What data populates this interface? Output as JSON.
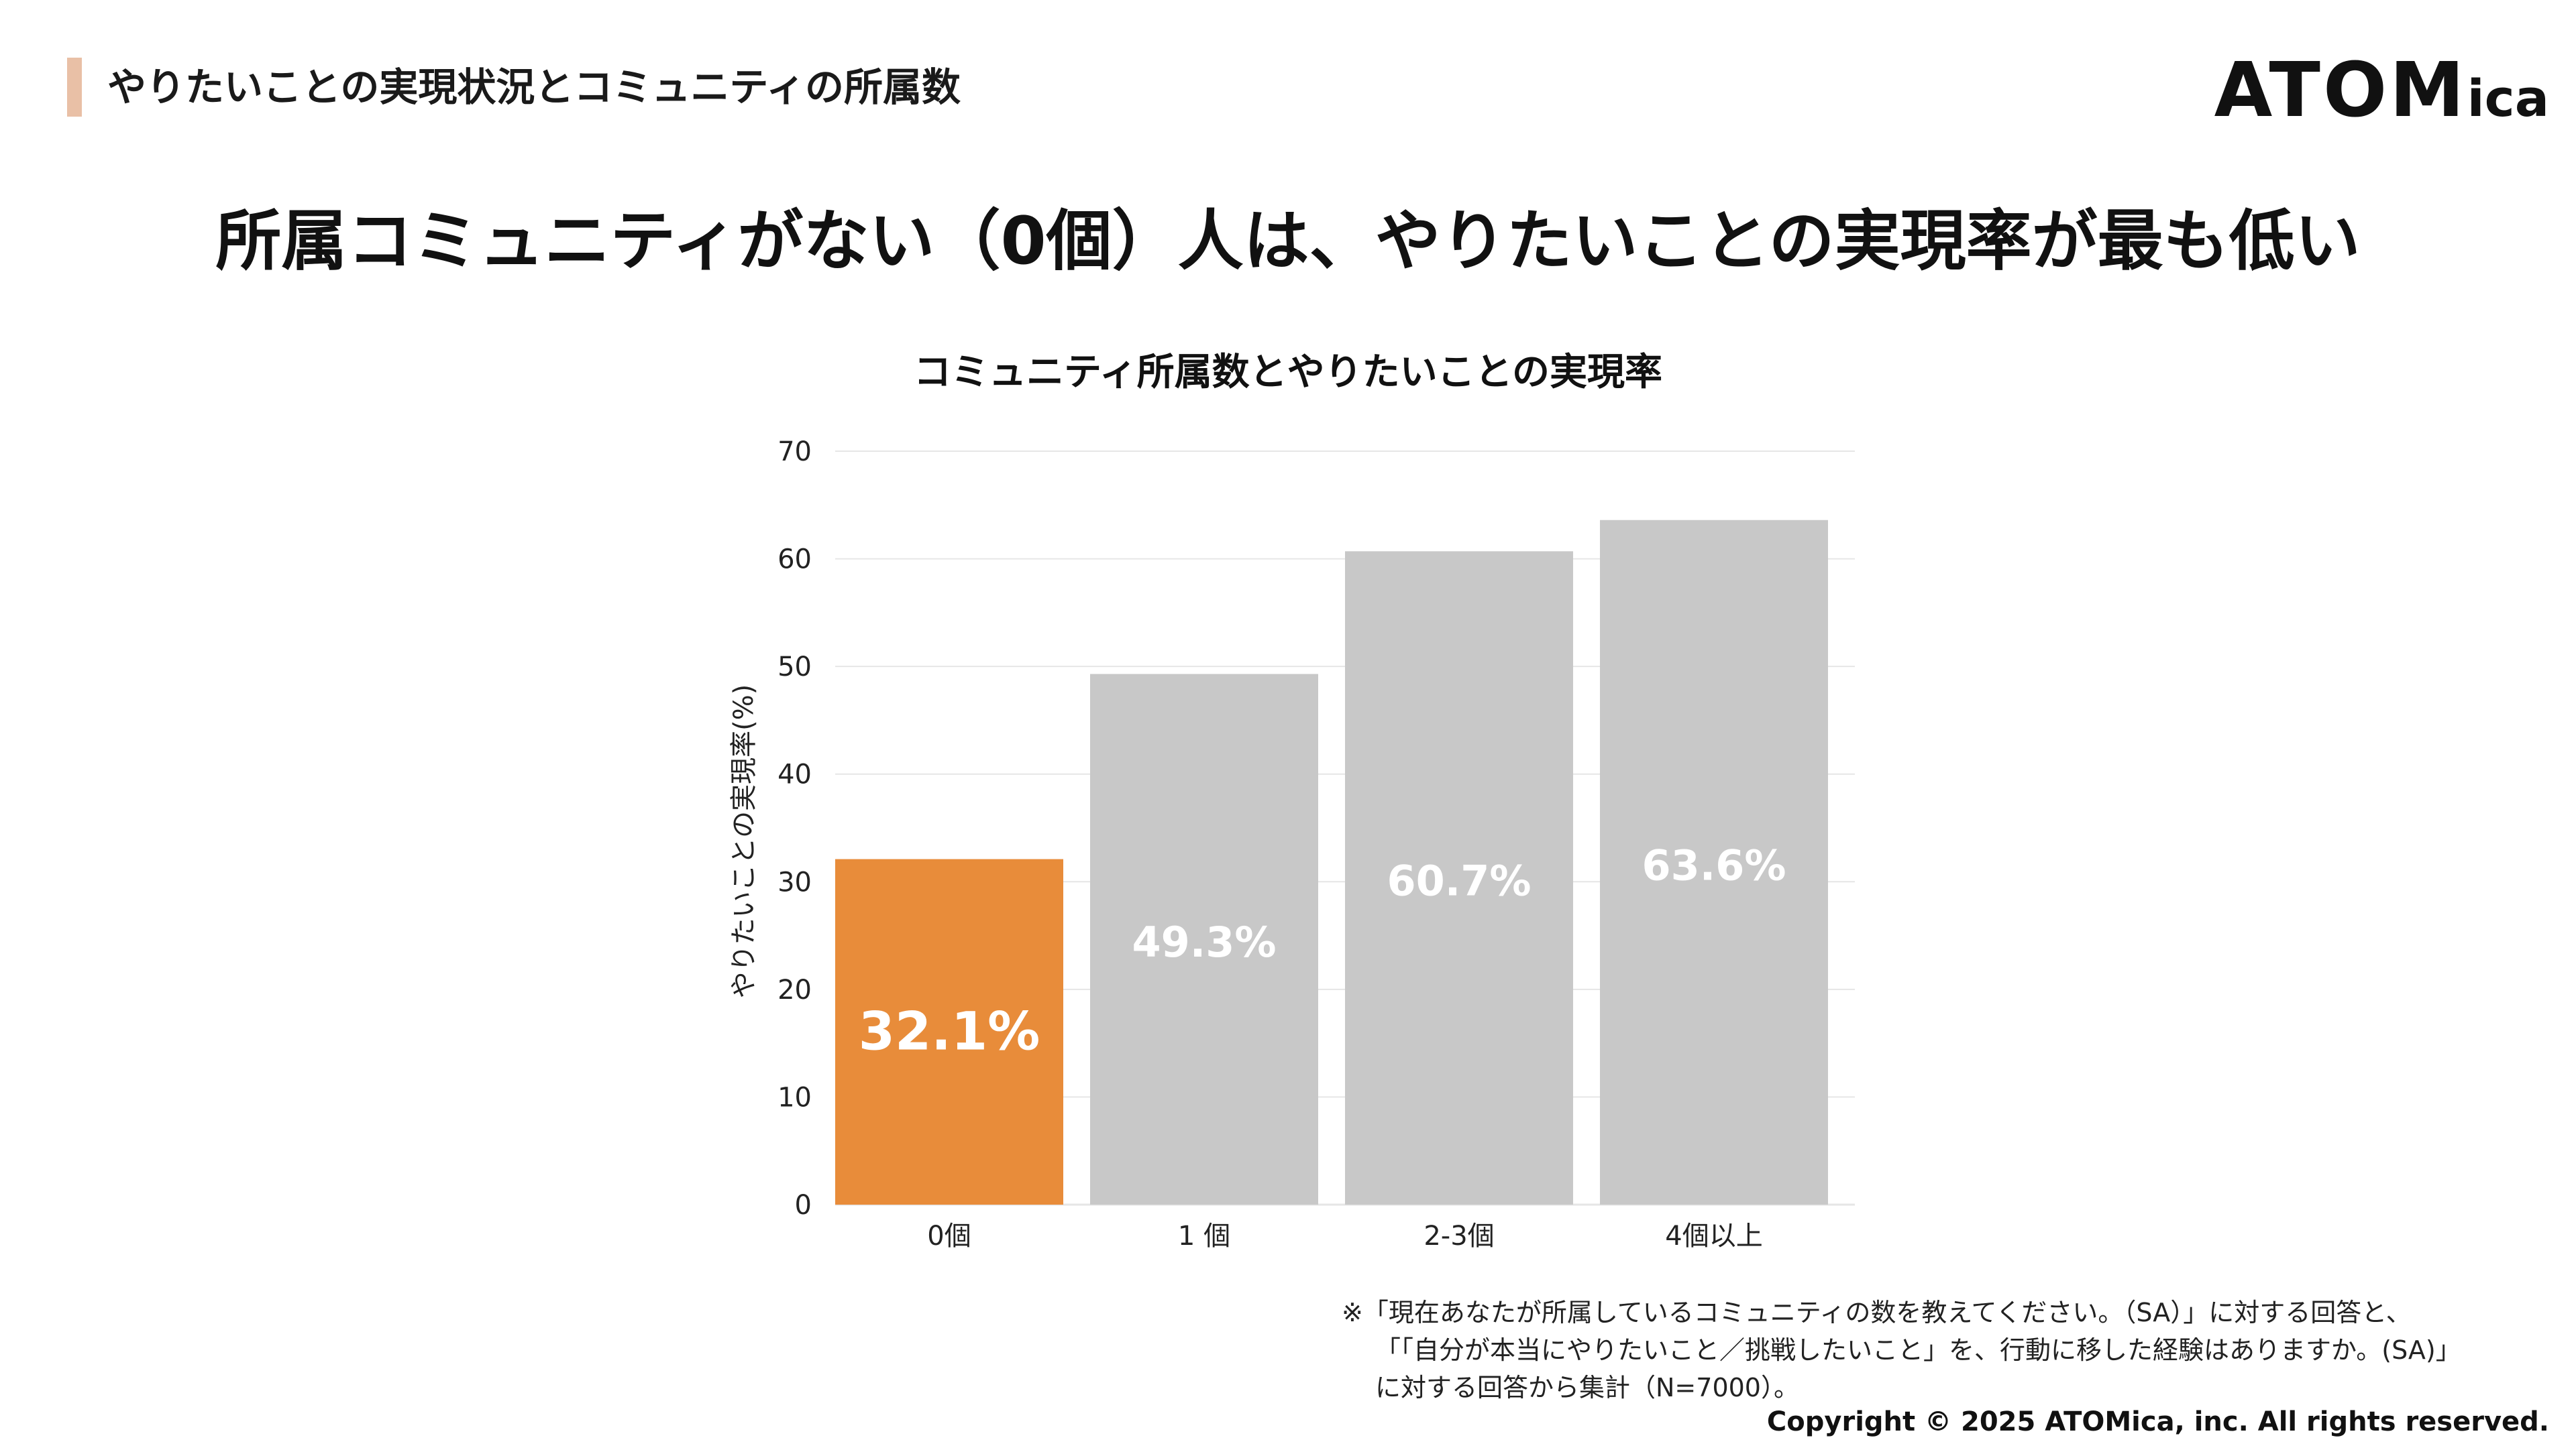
{
  "header": {
    "section_title": "やりたいことの実現状況とコミュニティの所属数",
    "logo_main": "ATOM",
    "logo_sub": "ica"
  },
  "headline": "所属コミュニティがない（0個）人は、やりたいことの実現率が最も低い",
  "chart_data": {
    "type": "bar",
    "title": "コミュニティ所属数とやりたいことの実現率",
    "xlabel": "",
    "ylabel": "やりたいことの実現率(%)",
    "categories": [
      "0個",
      "1 個",
      "2-3個",
      "4個以上"
    ],
    "values": [
      32.1,
      49.3,
      60.7,
      63.6
    ],
    "data_labels": [
      "32.1%",
      "49.3%",
      "60.7%",
      "63.6%"
    ],
    "ylim": [
      0,
      70
    ],
    "yticks": [
      0,
      10,
      20,
      30,
      40,
      50,
      60,
      70
    ],
    "grid": true,
    "colors": {
      "highlight": "#e88c3a",
      "default": "#c8c8c8",
      "label": "#ffffff",
      "grid": "#e6e6e6"
    }
  },
  "footnote": {
    "lines": [
      "※「現在あなたが所属しているコミュニティの数を教えてください。（SA）」に対する回答と、",
      "「「自分が本当にやりたいこと／挑戦したいこと」を、行動に移した経験はありますか。(SA)」",
      "に対する回答から集計（N=7000）。"
    ]
  },
  "copyright": "Copyright © 2025 ATOMica, inc. All rights reserved."
}
